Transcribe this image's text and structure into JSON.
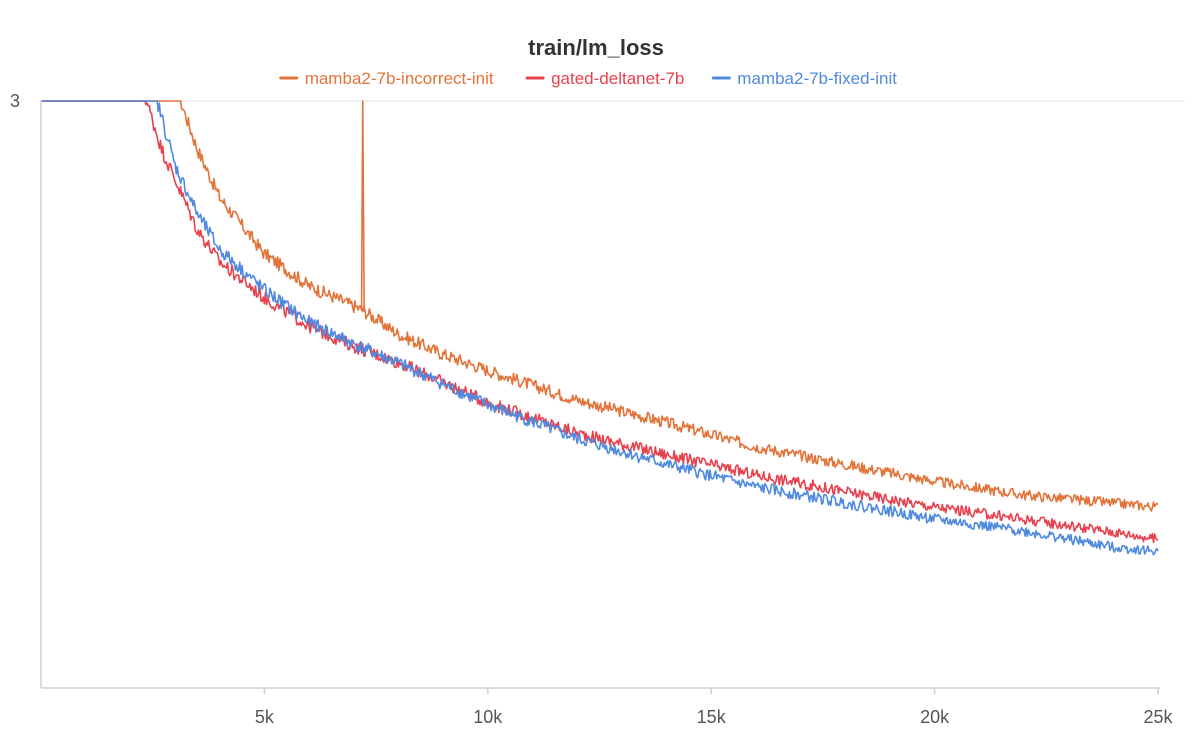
{
  "chart_data": {
    "type": "line",
    "title": "train/lm_loss",
    "xlabel": "",
    "ylabel": "",
    "xlim": [
      0,
      25000
    ],
    "ylim": [
      2.27,
      3.0
    ],
    "x_ticks": [
      {
        "value": 5000,
        "label": "5k"
      },
      {
        "value": 10000,
        "label": "10k"
      },
      {
        "value": 15000,
        "label": "15k"
      },
      {
        "value": 20000,
        "label": "20k"
      },
      {
        "value": 25000,
        "label": "25k"
      }
    ],
    "y_ticks": [
      {
        "value": 3.0,
        "label": "3"
      }
    ],
    "legend_position": "top-center",
    "series": [
      {
        "name": "mamba2-7b-incorrect-init",
        "color": "#e2743a",
        "points": [
          [
            0,
            3.02
          ],
          [
            3000,
            3.02
          ],
          [
            3500,
            2.94
          ],
          [
            4000,
            2.88
          ],
          [
            5000,
            2.81
          ],
          [
            6000,
            2.77
          ],
          [
            7000,
            2.745
          ],
          [
            7200,
            2.74
          ],
          [
            8000,
            2.71
          ],
          [
            9000,
            2.685
          ],
          [
            10000,
            2.665
          ],
          [
            12000,
            2.628
          ],
          [
            14000,
            2.6
          ],
          [
            16000,
            2.57
          ],
          [
            18000,
            2.548
          ],
          [
            20000,
            2.527
          ],
          [
            22000,
            2.51
          ],
          [
            24000,
            2.5
          ],
          [
            25000,
            2.495
          ]
        ],
        "spikes": [
          {
            "x": 7200,
            "y": 3.0
          }
        ]
      },
      {
        "name": "gated-deltanet-7b",
        "color": "#e8414e",
        "points": [
          [
            0,
            3.02
          ],
          [
            2250,
            3.02
          ],
          [
            2700,
            2.94
          ],
          [
            3500,
            2.84
          ],
          [
            4000,
            2.8
          ],
          [
            5000,
            2.755
          ],
          [
            6000,
            2.72
          ],
          [
            7000,
            2.695
          ],
          [
            8000,
            2.675
          ],
          [
            10000,
            2.625
          ],
          [
            12000,
            2.587
          ],
          [
            14000,
            2.56
          ],
          [
            16000,
            2.535
          ],
          [
            18000,
            2.514
          ],
          [
            20000,
            2.495
          ],
          [
            22000,
            2.48
          ],
          [
            24000,
            2.464
          ],
          [
            25000,
            2.455
          ]
        ],
        "spikes": []
      },
      {
        "name": "mamba2-7b-fixed-init",
        "color": "#4f8ae0",
        "points": [
          [
            0,
            3.02
          ],
          [
            2500,
            3.02
          ],
          [
            3000,
            2.92
          ],
          [
            3500,
            2.86
          ],
          [
            4000,
            2.815
          ],
          [
            5000,
            2.765
          ],
          [
            6000,
            2.725
          ],
          [
            7000,
            2.698
          ],
          [
            8000,
            2.674
          ],
          [
            10000,
            2.622
          ],
          [
            12000,
            2.58
          ],
          [
            14000,
            2.548
          ],
          [
            16000,
            2.52
          ],
          [
            18000,
            2.5
          ],
          [
            20000,
            2.48
          ],
          [
            22000,
            2.465
          ],
          [
            24000,
            2.445
          ],
          [
            25000,
            2.44
          ]
        ],
        "spikes": []
      }
    ]
  }
}
